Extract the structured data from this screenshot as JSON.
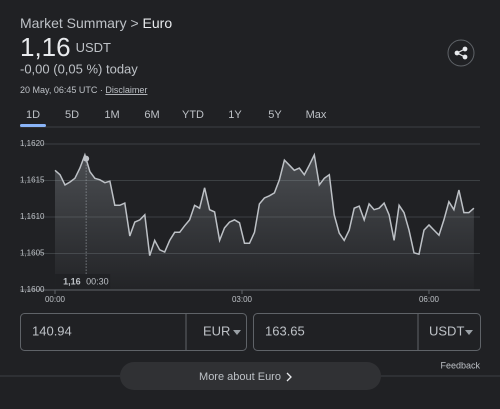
{
  "header": {
    "breadcrumb": "Market Summary",
    "separator": ">",
    "current": "Euro",
    "price": "1,16",
    "currency": "USDT",
    "change": "-0,00 (0,05 %) today",
    "timestamp": "20 May, 06:45 UTC",
    "dot": "·",
    "disclaimer": "Disclaimer"
  },
  "tabs": {
    "items": [
      "1D",
      "5D",
      "1M",
      "6M",
      "YTD",
      "1Y",
      "5Y",
      "Max"
    ],
    "active": 0
  },
  "chart_data": {
    "type": "line",
    "color": "#bdc1c6",
    "grid": true,
    "x": [
      0,
      0.08,
      0.16,
      0.24,
      0.32,
      0.4,
      0.48,
      0.56,
      0.64,
      0.72,
      0.8,
      0.88,
      0.96,
      1.04,
      1.12,
      1.2,
      1.28,
      1.36,
      1.44,
      1.52,
      1.6,
      1.68,
      1.76,
      1.84,
      1.92,
      2,
      2.08,
      2.16,
      2.24,
      2.32,
      2.4,
      2.48,
      2.56,
      2.64,
      2.72,
      2.8,
      2.88,
      2.96,
      3.04,
      3.12,
      3.2,
      3.28,
      3.36,
      3.44,
      3.52,
      3.6,
      3.68,
      3.76,
      3.84,
      3.92,
      4,
      4.08,
      4.16,
      4.24,
      4.32,
      4.4,
      4.48,
      4.56,
      4.64,
      4.72,
      4.8,
      4.88,
      4.96,
      5.04,
      5.12,
      5.2,
      5.28,
      5.36,
      5.44,
      5.52,
      5.6,
      5.68,
      5.76,
      5.84,
      5.92,
      6,
      6.08,
      6.16,
      6.24,
      6.32,
      6.4,
      6.48,
      6.56,
      6.64,
      6.72
    ],
    "values": [
      1.16164,
      1.16158,
      1.16144,
      1.16148,
      1.16153,
      1.16167,
      1.16185,
      1.16162,
      1.16153,
      1.16151,
      1.16147,
      1.16149,
      1.16116,
      1.16116,
      1.16119,
      1.16074,
      1.16093,
      1.16096,
      1.16103,
      1.16047,
      1.16068,
      1.16055,
      1.16052,
      1.16068,
      1.16079,
      1.16079,
      1.16088,
      1.16096,
      1.16116,
      1.16112,
      1.1614,
      1.1611,
      1.16107,
      1.16068,
      1.16085,
      1.16093,
      1.16096,
      1.16092,
      1.16064,
      1.16064,
      1.16079,
      1.16118,
      1.16126,
      1.16129,
      1.16133,
      1.16151,
      1.16178,
      1.16171,
      1.16164,
      1.16167,
      1.16158,
      1.16171,
      1.16185,
      1.16144,
      1.16153,
      1.16158,
      1.16103,
      1.16078,
      1.16068,
      1.16082,
      1.16112,
      1.16115,
      1.16096,
      1.16118,
      1.1611,
      1.16112,
      1.16119,
      1.16103,
      1.16068,
      1.16116,
      1.16106,
      1.16082,
      1.16051,
      1.16049,
      1.16082,
      1.16089,
      1.16082,
      1.16075,
      1.16096,
      1.16121,
      1.1611,
      1.16137,
      1.16106,
      1.16106,
      1.16112
    ],
    "xlim": [
      0,
      6.75
    ],
    "xticks": [
      {
        "value": 0,
        "label": "00:00"
      },
      {
        "value": 3,
        "label": "03:00"
      },
      {
        "value": 6,
        "label": "06:00"
      }
    ],
    "ylim": [
      1.16,
      1.162
    ],
    "yticks": [
      {
        "value": 1.16,
        "label": "1,1600"
      },
      {
        "value": 1.1605,
        "label": "1,1605"
      },
      {
        "value": 1.161,
        "label": "1,1610"
      },
      {
        "value": 1.1615,
        "label": "1,1615"
      },
      {
        "value": 1.162,
        "label": "1,1620"
      }
    ],
    "cursor": {
      "x": {
        "value": 0.5,
        "label": "00:30"
      },
      "y": {
        "value": 1.1618,
        "label": "1,16"
      }
    }
  },
  "converter": {
    "from_amount": "140.94",
    "from_currency": "EUR",
    "to_amount": "163.65",
    "to_currency": "USDT"
  },
  "feedback": "Feedback",
  "button": "More about Euro"
}
